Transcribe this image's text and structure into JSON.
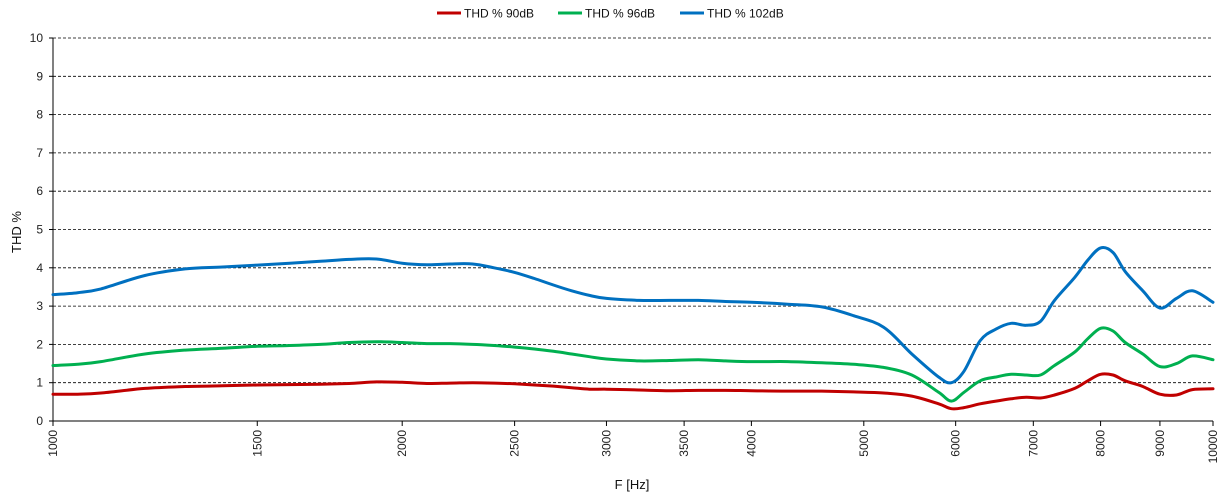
{
  "chart_data": {
    "type": "line",
    "xlabel": "F [Hz]",
    "ylabel": "THD %",
    "xscale": "log",
    "xlim": [
      1000,
      10000
    ],
    "ylim": [
      0,
      10
    ],
    "yticks": [
      0,
      1,
      2,
      3,
      4,
      5,
      6,
      7,
      8,
      9,
      10
    ],
    "xticks": [
      1000,
      1500,
      2000,
      2500,
      3000,
      3500,
      4000,
      5000,
      6000,
      7000,
      8000,
      9000,
      10000
    ],
    "grid": "horizontal dashed",
    "legend": "top-center",
    "series": [
      {
        "name": "THD % 90dB",
        "color": "#c00000",
        "x": [
          1000,
          1050,
          1100,
          1200,
          1300,
          1400,
          1500,
          1600,
          1700,
          1800,
          1900,
          2000,
          2100,
          2200,
          2300,
          2400,
          2500,
          2600,
          2700,
          2800,
          2900,
          3000,
          3200,
          3400,
          3600,
          3800,
          4000,
          4300,
          4600,
          4900,
          5200,
          5500,
          5800,
          5950,
          6100,
          6300,
          6500,
          6700,
          6900,
          7100,
          7300,
          7600,
          7800,
          8000,
          8200,
          8400,
          8700,
          9000,
          9300,
          9600,
          10000
        ],
        "values": [
          0.7,
          0.7,
          0.73,
          0.85,
          0.9,
          0.92,
          0.94,
          0.95,
          0.96,
          0.98,
          1.02,
          1.01,
          0.98,
          0.99,
          1.0,
          0.99,
          0.97,
          0.94,
          0.91,
          0.87,
          0.83,
          0.83,
          0.81,
          0.79,
          0.8,
          0.8,
          0.79,
          0.78,
          0.78,
          0.76,
          0.73,
          0.65,
          0.45,
          0.32,
          0.35,
          0.45,
          0.52,
          0.58,
          0.62,
          0.6,
          0.68,
          0.85,
          1.05,
          1.22,
          1.2,
          1.05,
          0.9,
          0.7,
          0.68,
          0.82,
          0.84
        ]
      },
      {
        "name": "THD % 96dB",
        "color": "#00b050",
        "x": [
          1000,
          1050,
          1100,
          1200,
          1300,
          1400,
          1500,
          1600,
          1700,
          1800,
          1900,
          2000,
          2100,
          2200,
          2300,
          2400,
          2500,
          2600,
          2700,
          2800,
          2900,
          3000,
          3200,
          3400,
          3600,
          3800,
          4000,
          4300,
          4600,
          4900,
          5200,
          5500,
          5800,
          5950,
          6100,
          6300,
          6500,
          6700,
          6900,
          7100,
          7300,
          7600,
          7800,
          8000,
          8200,
          8400,
          8700,
          9000,
          9300,
          9600,
          10000
        ],
        "values": [
          1.45,
          1.48,
          1.55,
          1.75,
          1.85,
          1.9,
          1.95,
          1.97,
          2.0,
          2.05,
          2.07,
          2.05,
          2.02,
          2.02,
          2.0,
          1.97,
          1.93,
          1.88,
          1.82,
          1.75,
          1.68,
          1.62,
          1.57,
          1.58,
          1.6,
          1.57,
          1.55,
          1.55,
          1.52,
          1.48,
          1.4,
          1.2,
          0.75,
          0.52,
          0.75,
          1.05,
          1.15,
          1.22,
          1.2,
          1.2,
          1.45,
          1.8,
          2.15,
          2.42,
          2.35,
          2.05,
          1.75,
          1.42,
          1.5,
          1.7,
          1.6
        ]
      },
      {
        "name": "THD % 102dB",
        "color": "#0070c0",
        "x": [
          1000,
          1050,
          1100,
          1200,
          1300,
          1400,
          1500,
          1600,
          1700,
          1800,
          1900,
          2000,
          2100,
          2200,
          2300,
          2400,
          2500,
          2600,
          2700,
          2800,
          2900,
          3000,
          3200,
          3400,
          3600,
          3800,
          4000,
          4300,
          4600,
          4900,
          5200,
          5500,
          5800,
          5950,
          6100,
          6300,
          6500,
          6700,
          6900,
          7100,
          7300,
          7600,
          7800,
          8000,
          8200,
          8400,
          8700,
          9000,
          9300,
          9600,
          10000
        ],
        "values": [
          3.3,
          3.35,
          3.45,
          3.8,
          3.97,
          4.02,
          4.07,
          4.12,
          4.17,
          4.22,
          4.23,
          4.12,
          4.08,
          4.1,
          4.1,
          4.0,
          3.88,
          3.72,
          3.55,
          3.4,
          3.28,
          3.2,
          3.15,
          3.15,
          3.15,
          3.12,
          3.1,
          3.05,
          2.98,
          2.75,
          2.45,
          1.75,
          1.15,
          1.0,
          1.3,
          2.1,
          2.4,
          2.55,
          2.5,
          2.6,
          3.15,
          3.75,
          4.2,
          4.52,
          4.4,
          3.9,
          3.4,
          2.95,
          3.2,
          3.4,
          3.1
        ]
      }
    ]
  }
}
